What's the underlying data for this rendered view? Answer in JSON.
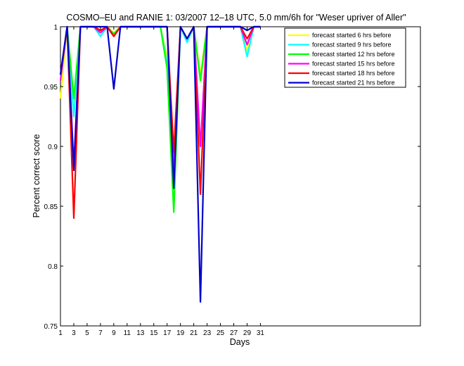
{
  "chart_data": {
    "type": "line",
    "title": "COSMO–EU and RANIE 1: 03/2007 12–18 UTC, 5.0 mm/6h for \"Weser upriver of Aller\"",
    "xlabel": "Days",
    "ylabel": "Percent correct score",
    "xlim": [
      1,
      55
    ],
    "ylim": [
      0.75,
      1.0
    ],
    "xticks": [
      "1",
      "3",
      "5",
      "7",
      "9",
      "11",
      "13",
      "15",
      "17",
      "19",
      "21",
      "23",
      "25",
      "27",
      "29",
      "31"
    ],
    "yticks": [
      "0.75",
      "0.8",
      "0.85",
      "0.9",
      "0.95",
      "1"
    ],
    "legend_position": "top-right",
    "series": [
      {
        "name": "forecast started 6 hrs before",
        "color": "#ffff00",
        "x": [
          1,
          2,
          3,
          4,
          5,
          6,
          7,
          8,
          9,
          10,
          11,
          12,
          13,
          14,
          15,
          16,
          17,
          18,
          19,
          20,
          21,
          22,
          23,
          24,
          25,
          26,
          27,
          28,
          29,
          30,
          31
        ],
        "y": [
          0.94,
          1.0,
          0.93,
          1.0,
          1.0,
          1.0,
          0.995,
          1.0,
          0.995,
          1.0,
          1.0,
          1.0,
          1.0,
          1.0,
          1.0,
          1.0,
          0.975,
          0.875,
          1.0,
          0.99,
          1.0,
          0.96,
          1.0,
          1.0,
          1.0,
          1.0,
          1.0,
          1.0,
          0.98,
          1.0,
          1.0
        ]
      },
      {
        "name": "forecast started 9 hrs before",
        "color": "#00ffff",
        "x": [
          1,
          2,
          3,
          4,
          5,
          6,
          7,
          8,
          9,
          10,
          11,
          12,
          13,
          14,
          15,
          16,
          17,
          18,
          19,
          20,
          21,
          22,
          23,
          24,
          25,
          26,
          27,
          28,
          29,
          30,
          31
        ],
        "y": [
          0.955,
          1.0,
          0.925,
          1.0,
          1.0,
          1.0,
          0.992,
          1.0,
          0.993,
          1.0,
          1.0,
          1.0,
          1.0,
          1.0,
          1.0,
          1.0,
          0.97,
          0.87,
          1.0,
          0.987,
          1.0,
          0.955,
          1.0,
          1.0,
          1.0,
          1.0,
          1.0,
          1.0,
          0.975,
          1.0,
          1.0
        ]
      },
      {
        "name": "forecast started 12 hrs before",
        "color": "#00ff00",
        "x": [
          1,
          2,
          3,
          4,
          5,
          6,
          7,
          8,
          9,
          10,
          11,
          12,
          13,
          14,
          15,
          16,
          17,
          18,
          19,
          20,
          21,
          22,
          23,
          24,
          25,
          26,
          27,
          28,
          29,
          30,
          31
        ],
        "y": [
          0.96,
          1.0,
          0.94,
          1.0,
          1.0,
          1.0,
          0.997,
          1.0,
          0.994,
          1.0,
          1.0,
          1.0,
          1.0,
          1.0,
          1.0,
          1.0,
          0.965,
          0.845,
          1.0,
          0.99,
          1.0,
          0.955,
          1.0,
          1.0,
          1.0,
          1.0,
          1.0,
          1.0,
          0.985,
          1.0,
          1.0
        ]
      },
      {
        "name": "forecast started 15 hrs before",
        "color": "#ff00ff",
        "x": [
          1,
          2,
          3,
          4,
          5,
          6,
          7,
          8,
          9,
          10,
          11,
          12,
          13,
          14,
          15,
          16,
          17,
          18,
          19,
          20,
          21,
          22,
          23,
          24,
          25,
          26,
          27,
          28,
          29,
          30,
          31
        ],
        "y": [
          0.955,
          1.0,
          0.885,
          1.0,
          1.0,
          1.0,
          0.995,
          1.0,
          0.992,
          1.0,
          1.0,
          1.0,
          1.0,
          1.0,
          1.0,
          1.0,
          1.0,
          0.88,
          1.0,
          0.99,
          1.0,
          0.9,
          1.0,
          1.0,
          1.0,
          1.0,
          1.0,
          1.0,
          0.985,
          1.0,
          1.0
        ]
      },
      {
        "name": "forecast started 18 hrs before",
        "color": "#ff0000",
        "x": [
          1,
          2,
          3,
          4,
          5,
          6,
          7,
          8,
          9,
          10,
          11,
          12,
          13,
          14,
          15,
          16,
          17,
          18,
          19,
          20,
          21,
          22,
          23,
          24,
          25,
          26,
          27,
          28,
          29,
          30,
          31
        ],
        "y": [
          0.96,
          1.0,
          0.84,
          1.0,
          1.0,
          1.0,
          0.997,
          1.0,
          0.992,
          1.0,
          1.0,
          1.0,
          1.0,
          1.0,
          1.0,
          1.0,
          1.0,
          0.895,
          1.0,
          0.99,
          1.0,
          0.86,
          1.0,
          1.0,
          1.0,
          1.0,
          1.0,
          1.0,
          0.99,
          1.0,
          1.0
        ]
      },
      {
        "name": "forecast started 21 hrs before",
        "color": "#0000cc",
        "x": [
          1,
          2,
          3,
          4,
          5,
          6,
          7,
          8,
          9,
          10,
          11,
          12,
          13,
          14,
          15,
          16,
          17,
          18,
          19,
          20,
          21,
          22,
          23,
          24,
          25,
          26,
          27,
          28,
          29,
          30,
          31
        ],
        "y": [
          0.96,
          1.0,
          0.88,
          1.0,
          1.0,
          1.0,
          1.0,
          1.0,
          0.948,
          1.0,
          1.0,
          1.0,
          1.0,
          1.0,
          1.0,
          1.0,
          1.0,
          0.865,
          1.0,
          0.99,
          1.0,
          0.77,
          1.0,
          1.0,
          1.0,
          1.0,
          1.0,
          1.0,
          0.997,
          1.0,
          1.0
        ]
      }
    ]
  }
}
